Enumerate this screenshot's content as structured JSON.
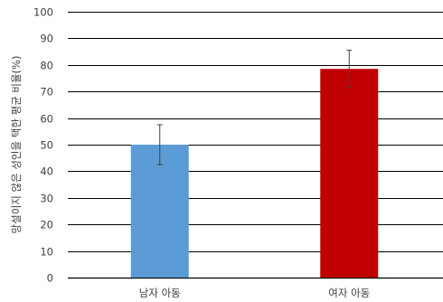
{
  "chart_data": {
    "type": "bar",
    "title": "",
    "xlabel": "",
    "ylabel": "망설이지 않은 성인을 택한 평균 비율(%)",
    "categories": [
      "남자 아동",
      "여자 아동"
    ],
    "values": [
      50,
      78.5
    ],
    "error_bars": [
      {
        "low": 42.5,
        "high": 57.5
      },
      {
        "low": 71.5,
        "high": 85.5
      }
    ],
    "bar_colors": [
      "#5B9BD5",
      "#C00000"
    ],
    "ylim": [
      0,
      100
    ],
    "yticks": [
      0,
      10,
      20,
      30,
      40,
      50,
      60,
      70,
      80,
      90,
      100
    ],
    "grid": true,
    "legend": "none"
  }
}
